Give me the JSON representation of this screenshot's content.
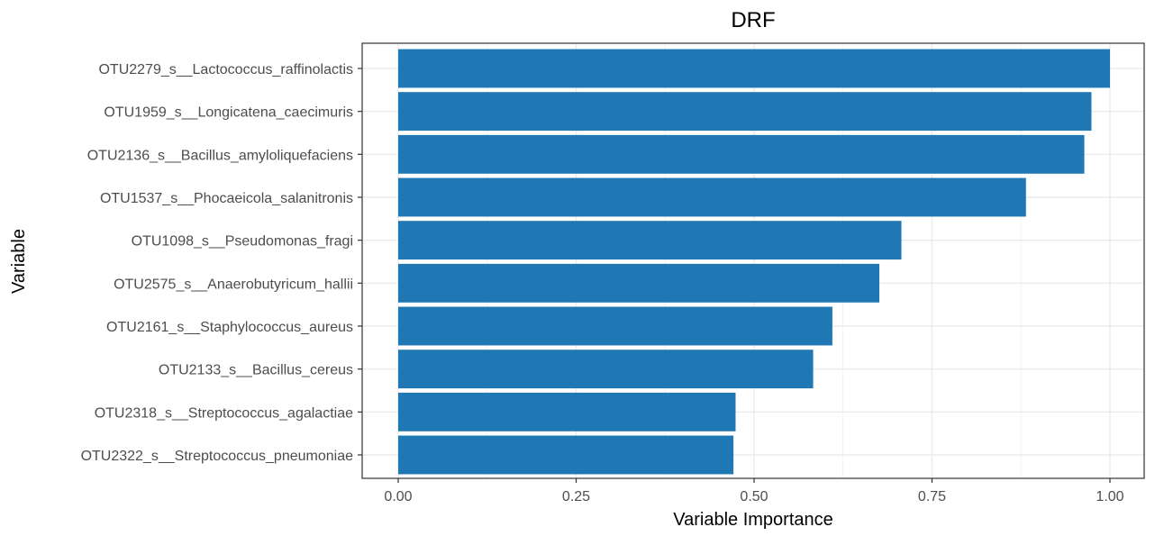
{
  "chart_data": {
    "type": "bar",
    "orientation": "horizontal",
    "title": "DRF",
    "xlabel": "Variable Importance",
    "ylabel": "Variable",
    "xlim": [
      0,
      1
    ],
    "x_ticks": [
      "0.00",
      "0.25",
      "0.50",
      "0.75",
      "1.00"
    ],
    "grid": true,
    "bar_color": "#1f78b4",
    "categories": [
      "OTU2279_s__Lactococcus_raffinolactis",
      "OTU1959_s__Longicatena_caecimuris",
      "OTU2136_s__Bacillus_amyloliquefaciens",
      "OTU1537_s__Phocaeicola_salanitronis",
      "OTU1098_s__Pseudomonas_fragi",
      "OTU2575_s__Anaerobutyricum_hallii",
      "OTU2161_s__Staphylococcus_aureus",
      "OTU2133_s__Bacillus_cereus",
      "OTU2318_s__Streptococcus_agalactiae",
      "OTU2322_s__Streptococcus_pneumoniae"
    ],
    "values": [
      1.0,
      0.974,
      0.964,
      0.882,
      0.707,
      0.676,
      0.61,
      0.583,
      0.474,
      0.471
    ]
  }
}
